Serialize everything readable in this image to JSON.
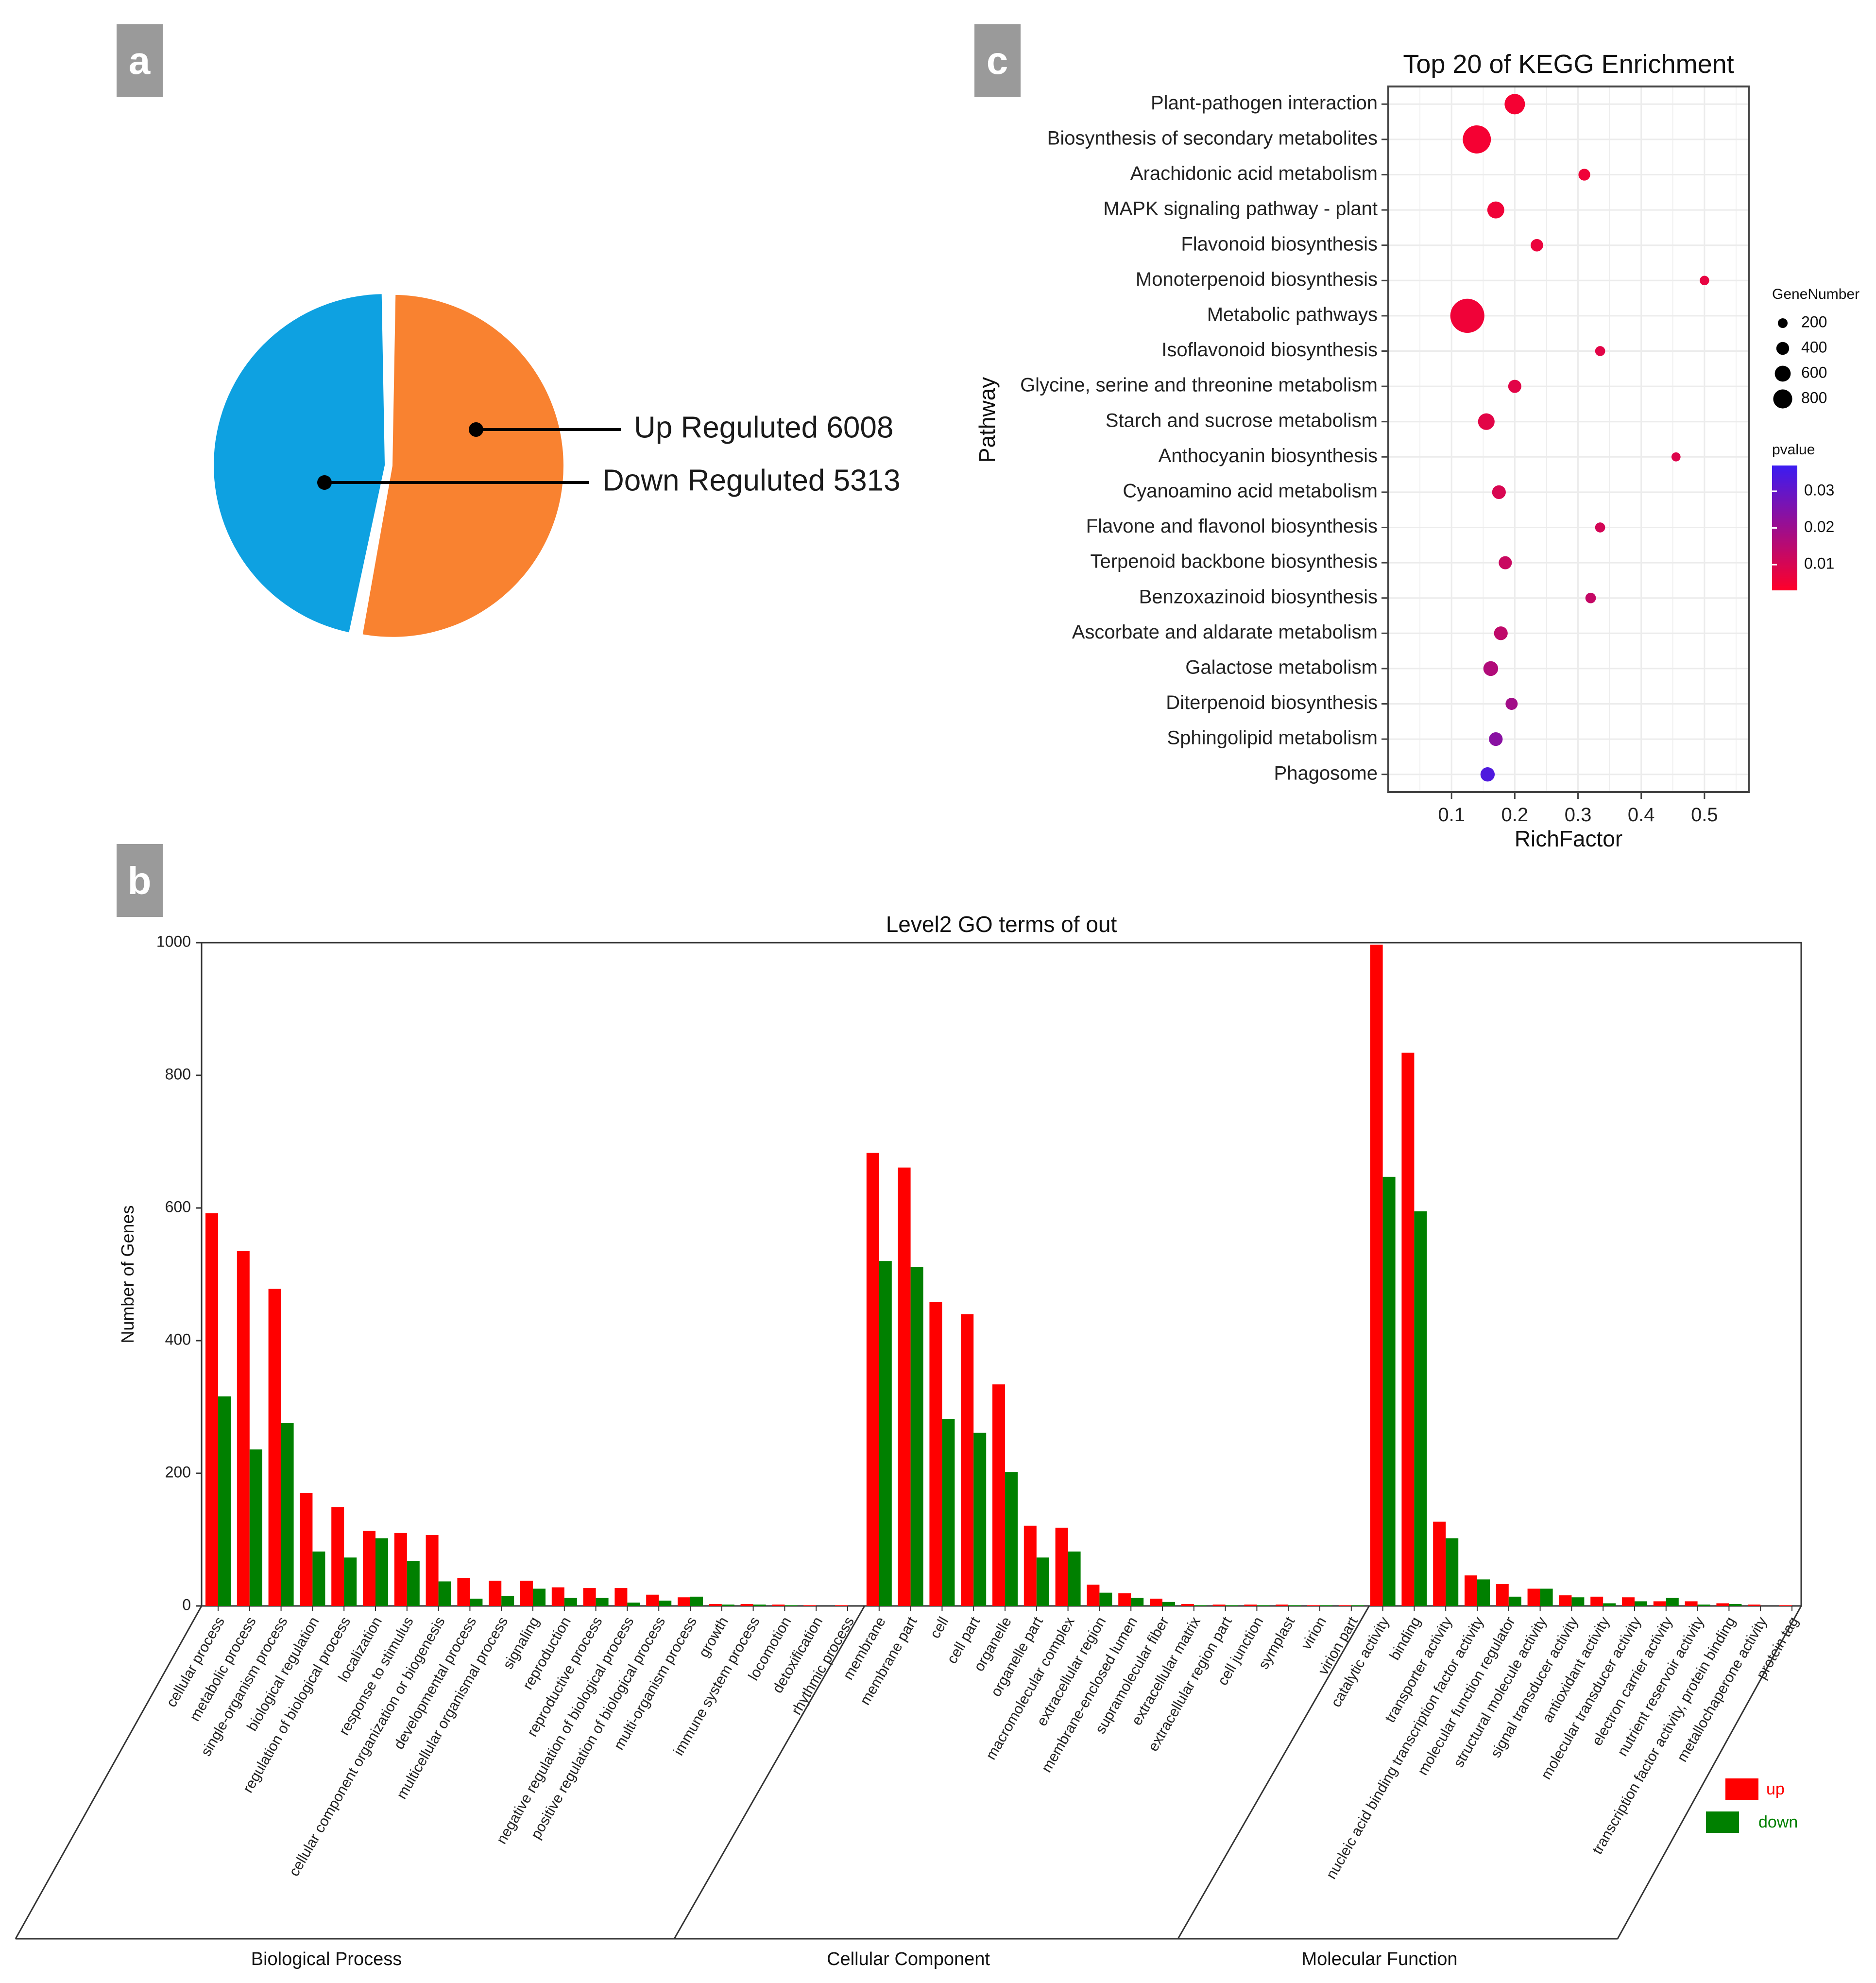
{
  "panels": {
    "a": "a",
    "b": "b",
    "c": "c"
  },
  "chart_data": [
    {
      "type": "pie",
      "panel": "a",
      "slices": [
        {
          "label": "Up  Reguluted 6008",
          "value": 6008,
          "color": "#f98230"
        },
        {
          "label": "Down Reguluted 5313",
          "value": 5313,
          "color": "#0ea1e1"
        }
      ]
    },
    {
      "type": "scatter",
      "panel": "c",
      "title": "Top 20 of KEGG Enrichment",
      "xlabel": "RichFactor",
      "ylabel": "Pathway",
      "xlim": [
        0.0,
        0.57
      ],
      "xticks": [
        "0.1",
        "0.2",
        "0.3",
        "0.4",
        "0.5"
      ],
      "grid": true,
      "legend_size_title": "GeneNumber",
      "legend_size_values": [
        "200",
        "400",
        "600",
        "800"
      ],
      "legend_color_title": "pvalue",
      "legend_color_values": [
        "0.03",
        "0.02",
        "0.01"
      ],
      "color_low": "#ff0029",
      "color_high": "#3b1cf2",
      "points": [
        {
          "pathway": "Plant-pathogen interaction",
          "rich": 0.2,
          "genes": 240,
          "pvalue": 0.002
        },
        {
          "pathway": "Biosynthesis of secondary metabolites",
          "rich": 0.14,
          "genes": 560,
          "pvalue": 0.002
        },
        {
          "pathway": "Arachidonic acid metabolism",
          "rich": 0.31,
          "genes": 40,
          "pvalue": 0.003
        },
        {
          "pathway": "MAPK signaling pathway - plant",
          "rich": 0.17,
          "genes": 140,
          "pvalue": 0.003
        },
        {
          "pathway": "Flavonoid biosynthesis",
          "rich": 0.235,
          "genes": 50,
          "pvalue": 0.004
        },
        {
          "pathway": "Monoterpenoid biosynthesis",
          "rich": 0.5,
          "genes": 15,
          "pvalue": 0.005
        },
        {
          "pathway": "Metabolic pathways",
          "rich": 0.125,
          "genes": 900,
          "pvalue": 0.003
        },
        {
          "pathway": "Isoflavonoid biosynthesis",
          "rich": 0.335,
          "genes": 20,
          "pvalue": 0.006
        },
        {
          "pathway": "Glycine, serine and threonine metabolism",
          "rich": 0.2,
          "genes": 60,
          "pvalue": 0.006
        },
        {
          "pathway": "Starch and sucrose metabolism",
          "rich": 0.155,
          "genes": 130,
          "pvalue": 0.006
        },
        {
          "pathway": "Anthocyanin biosynthesis",
          "rich": 0.455,
          "genes": 12,
          "pvalue": 0.007
        },
        {
          "pathway": "Cyanoamino acid metabolism",
          "rich": 0.175,
          "genes": 70,
          "pvalue": 0.008
        },
        {
          "pathway": "Flavone and flavonol biosynthesis",
          "rich": 0.335,
          "genes": 20,
          "pvalue": 0.009
        },
        {
          "pathway": "Terpenoid backbone biosynthesis",
          "rich": 0.185,
          "genes": 60,
          "pvalue": 0.011
        },
        {
          "pathway": "Benzoxazinoid biosynthesis",
          "rich": 0.32,
          "genes": 25,
          "pvalue": 0.012
        },
        {
          "pathway": "Ascorbate and aldarate metabolism",
          "rich": 0.178,
          "genes": 70,
          "pvalue": 0.013
        },
        {
          "pathway": "Galactose metabolism",
          "rich": 0.162,
          "genes": 90,
          "pvalue": 0.016
        },
        {
          "pathway": "Diterpenoid biosynthesis",
          "rich": 0.195,
          "genes": 45,
          "pvalue": 0.019
        },
        {
          "pathway": "Sphingolipid metabolism",
          "rich": 0.17,
          "genes": 70,
          "pvalue": 0.024
        },
        {
          "pathway": "Phagosome",
          "rich": 0.157,
          "genes": 80,
          "pvalue": 0.036
        }
      ]
    },
    {
      "type": "bar",
      "panel": "b",
      "title": "Level2 GO terms of out",
      "ylabel": "Number of Genes",
      "ylim": [
        0,
        1000
      ],
      "yticks": [
        "0",
        "200",
        "400",
        "600",
        "800",
        "1000"
      ],
      "series": [
        {
          "name": "up",
          "color": "#ff0000"
        },
        {
          "name": "down",
          "color": "#008000"
        }
      ],
      "groups": [
        {
          "name": "Biological Process",
          "categories": [
            {
              "label": "cellular process",
              "up": 592,
              "down": 316
            },
            {
              "label": "metabolic process",
              "up": 535,
              "down": 236
            },
            {
              "label": "single-organism process",
              "up": 478,
              "down": 276
            },
            {
              "label": "biological regulation",
              "up": 170,
              "down": 82
            },
            {
              "label": "regulation of biological process",
              "up": 149,
              "down": 73
            },
            {
              "label": "localization",
              "up": 113,
              "down": 102
            },
            {
              "label": "response to stimulus",
              "up": 110,
              "down": 68
            },
            {
              "label": "cellular component organization or biogenesis",
              "up": 107,
              "down": 37
            },
            {
              "label": "developmental process",
              "up": 42,
              "down": 11
            },
            {
              "label": "multicellular organismal process",
              "up": 38,
              "down": 15
            },
            {
              "label": "signaling",
              "up": 38,
              "down": 26
            },
            {
              "label": "reproduction",
              "up": 28,
              "down": 12
            },
            {
              "label": "reproductive process",
              "up": 27,
              "down": 12
            },
            {
              "label": "negative regulation of biological process",
              "up": 27,
              "down": 5
            },
            {
              "label": "positive regulation of biological process",
              "up": 17,
              "down": 8
            },
            {
              "label": "multi-organism process",
              "up": 13,
              "down": 14
            },
            {
              "label": "growth",
              "up": 3,
              "down": 2
            },
            {
              "label": "immune system process",
              "up": 3,
              "down": 2
            },
            {
              "label": "locomotion",
              "up": 2,
              "down": 1
            },
            {
              "label": "detoxification",
              "up": 1,
              "down": 0
            },
            {
              "label": "rhythmic process",
              "up": 1,
              "down": 0
            }
          ]
        },
        {
          "name": "Cellular Component",
          "categories": [
            {
              "label": "membrane",
              "up": 683,
              "down": 520
            },
            {
              "label": "membrane part",
              "up": 661,
              "down": 511
            },
            {
              "label": "cell",
              "up": 458,
              "down": 282
            },
            {
              "label": "cell part",
              "up": 440,
              "down": 261
            },
            {
              "label": "organelle",
              "up": 334,
              "down": 202
            },
            {
              "label": "organelle part",
              "up": 121,
              "down": 73
            },
            {
              "label": "macromolecular complex",
              "up": 118,
              "down": 82
            },
            {
              "label": "extracellular region",
              "up": 32,
              "down": 20
            },
            {
              "label": "membrane-enclosed lumen",
              "up": 19,
              "down": 12
            },
            {
              "label": "supramolecular fiber",
              "up": 11,
              "down": 6
            },
            {
              "label": "extracellular matrix",
              "up": 3,
              "down": 1
            },
            {
              "label": "extracellular region part",
              "up": 2,
              "down": 1
            },
            {
              "label": "cell junction",
              "up": 2,
              "down": 1
            },
            {
              "label": "symplast",
              "up": 2,
              "down": 1
            },
            {
              "label": "virion",
              "up": 1,
              "down": 1
            },
            {
              "label": "virion part",
              "up": 1,
              "down": 1
            }
          ]
        },
        {
          "name": "Molecular Function",
          "categories": [
            {
              "label": "catalytic activity",
              "up": 997,
              "down": 647
            },
            {
              "label": "binding",
              "up": 834,
              "down": 595
            },
            {
              "label": "transporter activity",
              "up": 127,
              "down": 102
            },
            {
              "label": "nucleic acid binding transcription factor activity",
              "up": 46,
              "down": 40
            },
            {
              "label": "molecular function regulator",
              "up": 33,
              "down": 14
            },
            {
              "label": "structural molecule activity",
              "up": 26,
              "down": 26
            },
            {
              "label": "signal transducer activity",
              "up": 16,
              "down": 13
            },
            {
              "label": "antioxidant activity",
              "up": 14,
              "down": 4
            },
            {
              "label": "molecular transducer activity",
              "up": 13,
              "down": 7
            },
            {
              "label": "electron carrier activity",
              "up": 7,
              "down": 12
            },
            {
              "label": "nutrient reservoir activity",
              "up": 7,
              "down": 2
            },
            {
              "label": "transcription factor activity, protein binding",
              "up": 4,
              "down": 3
            },
            {
              "label": "metallochaperone activity",
              "up": 2,
              "down": 0
            },
            {
              "label": "protein tag",
              "up": 1,
              "down": 0
            }
          ]
        }
      ]
    }
  ]
}
